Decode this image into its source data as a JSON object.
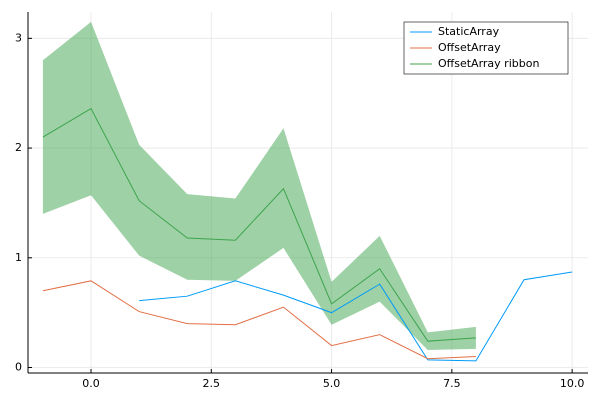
{
  "chart_data": {
    "type": "line",
    "xlim": [
      -1.31,
      10.33
    ],
    "ylim": [
      -0.05,
      3.24
    ],
    "xticks": [
      {
        "value": 0,
        "label": "0.0"
      },
      2.5,
      {
        "value": 5,
        "label": "5.0"
      },
      7.5,
      {
        "value": 10,
        "label": "10.0"
      }
    ],
    "yticks": [
      0,
      1,
      2,
      3
    ],
    "grid": true,
    "legend": "top-right",
    "series": [
      {
        "name": "StaticArray",
        "color": "#009af9",
        "x": [
          1,
          2,
          3,
          4,
          5,
          6,
          7,
          8,
          9,
          10
        ],
        "values": [
          0.61,
          0.65,
          0.79,
          0.66,
          0.5,
          0.76,
          0.07,
          0.06,
          0.8,
          0.87
        ]
      },
      {
        "name": "OffsetArray",
        "color": "#e26f46",
        "x": [
          -1,
          0,
          1,
          2,
          3,
          4,
          5,
          6,
          7,
          8
        ],
        "values": [
          0.7,
          0.79,
          0.51,
          0.4,
          0.39,
          0.55,
          0.2,
          0.3,
          0.08,
          0.1
        ]
      },
      {
        "name": "OffsetArray ribbon",
        "color": "#3da44d",
        "x": [
          -1,
          0,
          1,
          2,
          3,
          4,
          5,
          6,
          7,
          8
        ],
        "values": [
          2.1,
          2.36,
          1.52,
          1.18,
          1.16,
          1.63,
          0.58,
          0.9,
          0.24,
          0.27
        ],
        "lower": [
          1.4,
          1.57,
          1.02,
          0.8,
          0.79,
          1.09,
          0.39,
          0.6,
          0.16,
          0.17
        ],
        "upper": [
          2.8,
          3.15,
          2.03,
          1.58,
          1.54,
          2.18,
          0.78,
          1.2,
          0.32,
          0.37
        ]
      }
    ]
  }
}
